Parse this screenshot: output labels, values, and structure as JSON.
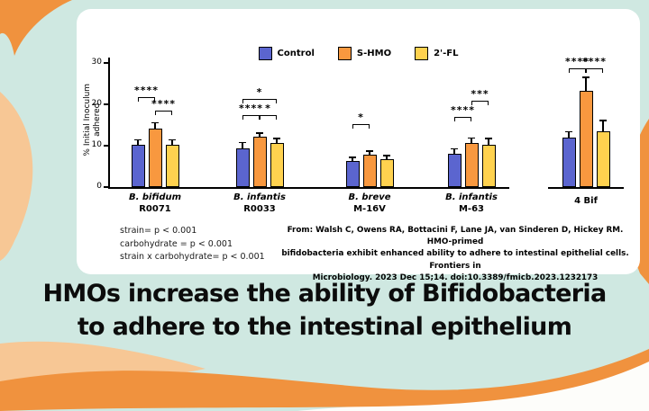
{
  "colors": {
    "mint": "#cfe8e1",
    "orange": "#f0923e",
    "peach": "#f7c795",
    "panel": "#ffffff"
  },
  "chart_data": {
    "type": "bar",
    "title": "",
    "ylabel": "% Initial Inoculum adhered",
    "ylim": [
      0,
      30
    ],
    "yticks": [
      0,
      10,
      20,
      30
    ],
    "grid": false,
    "legend_position": "top",
    "series_legend": [
      {
        "name": "Control",
        "color": "#5b65cf"
      },
      {
        "name": "S-HMO",
        "color": "#f8983f"
      },
      {
        "name": "2'-FL",
        "color": "#ffd24f"
      }
    ],
    "groups": [
      {
        "species": "B. bifidum",
        "strain": "R0071",
        "values": [
          10.2,
          14.1,
          10.3
        ],
        "errors": [
          1.2,
          1.4,
          1.1
        ],
        "brackets": [
          {
            "from": 0,
            "to": 1,
            "label": "****",
            "y": 21.7
          },
          {
            "from": 1,
            "to": 2,
            "label": "****",
            "y": 18.5
          }
        ]
      },
      {
        "species": "B. infantis",
        "strain": "R0033",
        "values": [
          9.3,
          12.2,
          10.7
        ],
        "errors": [
          1.5,
          0.8,
          1.0
        ],
        "brackets": [
          {
            "from": 0,
            "to": 2,
            "label": "*",
            "y": 21.3
          },
          {
            "from": 0,
            "to": 1,
            "label": "****",
            "y": 17.5
          },
          {
            "from": 1,
            "to": 2,
            "label": "*",
            "y": 17.5
          }
        ]
      },
      {
        "species": "B. breve",
        "strain": "M-16V",
        "values": [
          6.4,
          7.8,
          6.7
        ],
        "errors": [
          0.8,
          0.9,
          0.9
        ],
        "brackets": [
          {
            "from": 0,
            "to": 1,
            "label": "*",
            "y": 15.2
          }
        ]
      },
      {
        "species": "B. infantis",
        "strain": "M-63",
        "values": [
          8.0,
          10.6,
          10.2
        ],
        "errors": [
          1.2,
          1.3,
          1.5
        ],
        "brackets": [
          {
            "from": 1,
            "to": 2,
            "label": "***",
            "y": 20.9
          },
          {
            "from": 0,
            "to": 1,
            "label": "****",
            "y": 17.0
          }
        ]
      },
      {
        "species": "",
        "strain": "4 Bif",
        "values": [
          11.9,
          23.2,
          13.5
        ],
        "errors": [
          1.5,
          3.3,
          2.6
        ],
        "brackets": [
          {
            "from": 0,
            "to": 1,
            "label": "****",
            "y": 28.6
          },
          {
            "from": 1,
            "to": 2,
            "label": "****",
            "y": 28.6
          }
        ]
      }
    ]
  },
  "stats_block": {
    "lines": [
      "strain= p < 0.001",
      "carbohydrate = p < 0.001",
      "strain x carbohydrate= p < 0.001"
    ]
  },
  "citation": {
    "lines": [
      "From: Walsh C, Owens RA, Bottacini F, Lane JA, van Sinderen D, Hickey RM. HMO-primed",
      "bifidobacteria exhibit enhanced ability to adhere to intestinal epithelial cells. Frontiers in",
      "Microbiology. 2023 Dec 15;14. doi:10.3389/fmicb.2023.1232173"
    ]
  },
  "headline": {
    "line1": "HMOs increase the ability of Bifidobacteria",
    "line2": "to adhere to the intestinal epithelium"
  }
}
